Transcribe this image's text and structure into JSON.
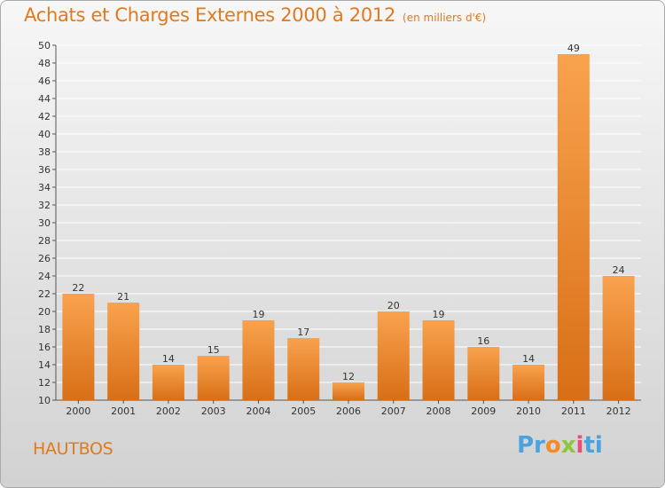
{
  "header": {
    "title": "Achats et Charges Externes 2000 à 2012",
    "subtitle": "(en milliers d'€)"
  },
  "footer": {
    "commune": "HAUTBOS",
    "logo": "Proxiti"
  },
  "colors": {
    "bar_light": "#f9a24e",
    "bar_dark": "#d86f16",
    "title": "#e07a1f",
    "grid": "#ffffff"
  },
  "chart_data": {
    "type": "bar",
    "title": "Achats et Charges Externes 2000 à 2012",
    "subtitle": "(en milliers d'€)",
    "categories": [
      "2000",
      "2001",
      "2002",
      "2003",
      "2004",
      "2005",
      "2006",
      "2007",
      "2008",
      "2009",
      "2010",
      "2011",
      "2012"
    ],
    "values": [
      22,
      21,
      14,
      15,
      19,
      17,
      12,
      20,
      19,
      16,
      14,
      49,
      24
    ],
    "xlabel": "",
    "ylabel": "",
    "ylim": [
      10,
      50
    ],
    "yticks": [
      10,
      12,
      14,
      16,
      18,
      20,
      22,
      24,
      26,
      28,
      30,
      32,
      34,
      36,
      38,
      40,
      42,
      44,
      46,
      48,
      50
    ],
    "grid": true,
    "legend": "none"
  }
}
